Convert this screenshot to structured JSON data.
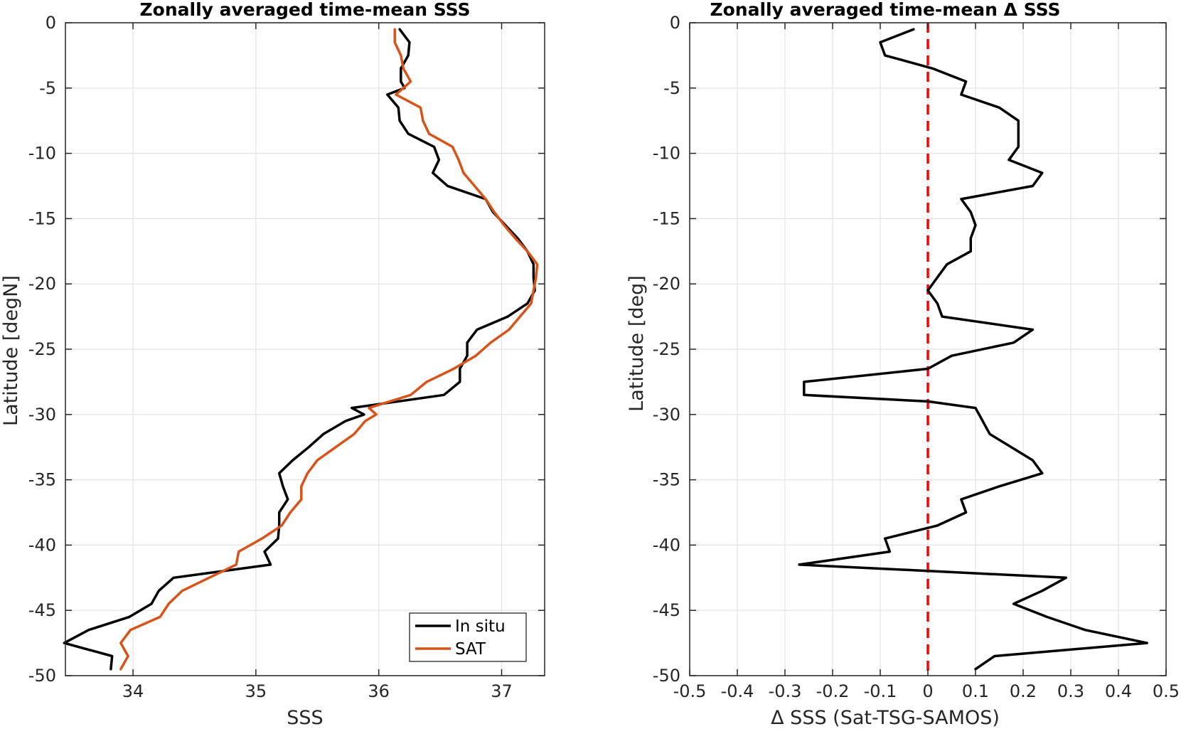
{
  "chart_data": [
    {
      "type": "line",
      "title": "Zonally averaged time-mean SSS",
      "xlabel": "SSS",
      "ylabel": "Latitude [degN]",
      "xlim": [
        33.45,
        37.35
      ],
      "ylim": [
        -50,
        0
      ],
      "xticks": [
        34,
        35,
        36,
        37
      ],
      "yticks": [
        0,
        -5,
        -10,
        -15,
        -20,
        -25,
        -30,
        -35,
        -40,
        -45,
        -50
      ],
      "grid": true,
      "legend": {
        "placement": "bottom-right",
        "entries": [
          "In situ",
          "SAT"
        ]
      },
      "series": [
        {
          "name": "In situ",
          "color": "#000000",
          "points": [
            [
              36.17,
              -0.5
            ],
            [
              36.25,
              -1.5
            ],
            [
              36.24,
              -2.5
            ],
            [
              36.18,
              -3.5
            ],
            [
              36.18,
              -4.5
            ],
            [
              36.21,
              -5.0
            ],
            [
              36.07,
              -5.5
            ],
            [
              36.16,
              -6.5
            ],
            [
              36.17,
              -7.5
            ],
            [
              36.24,
              -8.5
            ],
            [
              36.45,
              -9.5
            ],
            [
              36.49,
              -10.5
            ],
            [
              36.44,
              -11.5
            ],
            [
              36.56,
              -12.5
            ],
            [
              36.87,
              -13.5
            ],
            [
              36.93,
              -14.5
            ],
            [
              37.03,
              -15.5
            ],
            [
              37.13,
              -16.5
            ],
            [
              37.21,
              -17.5
            ],
            [
              37.26,
              -18.5
            ],
            [
              37.26,
              -19.5
            ],
            [
              37.27,
              -20.5
            ],
            [
              37.21,
              -21.5
            ],
            [
              37.05,
              -22.5
            ],
            [
              36.8,
              -23.5
            ],
            [
              36.72,
              -24.5
            ],
            [
              36.72,
              -25.5
            ],
            [
              36.66,
              -26.5
            ],
            [
              36.66,
              -27.5
            ],
            [
              36.53,
              -28.5
            ],
            [
              35.78,
              -29.5
            ],
            [
              35.88,
              -30.0
            ],
            [
              35.73,
              -30.5
            ],
            [
              35.55,
              -31.5
            ],
            [
              35.43,
              -32.5
            ],
            [
              35.3,
              -33.5
            ],
            [
              35.19,
              -34.5
            ],
            [
              35.22,
              -35.5
            ],
            [
              35.26,
              -36.5
            ],
            [
              35.19,
              -37.5
            ],
            [
              35.19,
              -38.5
            ],
            [
              35.18,
              -39.5
            ],
            [
              35.07,
              -40.5
            ],
            [
              35.12,
              -41.5
            ],
            [
              34.33,
              -42.5
            ],
            [
              34.21,
              -43.5
            ],
            [
              34.15,
              -44.5
            ],
            [
              33.97,
              -45.5
            ],
            [
              33.64,
              -46.5
            ],
            [
              33.44,
              -47.5
            ],
            [
              33.83,
              -48.5
            ],
            [
              33.82,
              -49.5
            ]
          ]
        },
        {
          "name": "SAT",
          "color": "#D95319",
          "points": [
            [
              36.13,
              -0.5
            ],
            [
              36.13,
              -1.5
            ],
            [
              36.18,
              -2.5
            ],
            [
              36.2,
              -3.5
            ],
            [
              36.26,
              -4.5
            ],
            [
              36.14,
              -5.5
            ],
            [
              36.34,
              -6.5
            ],
            [
              36.36,
              -7.5
            ],
            [
              36.41,
              -8.5
            ],
            [
              36.6,
              -9.5
            ],
            [
              36.65,
              -10.5
            ],
            [
              36.69,
              -11.5
            ],
            [
              36.78,
              -12.5
            ],
            [
              36.87,
              -13.5
            ],
            [
              36.94,
              -14.5
            ],
            [
              37.02,
              -15.5
            ],
            [
              37.11,
              -16.5
            ],
            [
              37.21,
              -17.5
            ],
            [
              37.29,
              -18.5
            ],
            [
              37.28,
              -19.5
            ],
            [
              37.26,
              -20.5
            ],
            [
              37.24,
              -21.5
            ],
            [
              37.15,
              -22.5
            ],
            [
              37.06,
              -23.5
            ],
            [
              36.91,
              -24.5
            ],
            [
              36.79,
              -25.5
            ],
            [
              36.61,
              -26.5
            ],
            [
              36.39,
              -27.5
            ],
            [
              36.26,
              -28.5
            ],
            [
              35.92,
              -29.5
            ],
            [
              35.98,
              -30.0
            ],
            [
              35.89,
              -30.5
            ],
            [
              35.8,
              -31.5
            ],
            [
              35.65,
              -32.5
            ],
            [
              35.5,
              -33.5
            ],
            [
              35.42,
              -34.5
            ],
            [
              35.37,
              -35.5
            ],
            [
              35.37,
              -36.5
            ],
            [
              35.28,
              -37.5
            ],
            [
              35.21,
              -38.5
            ],
            [
              35.05,
              -39.5
            ],
            [
              34.86,
              -40.5
            ],
            [
              34.84,
              -41.5
            ],
            [
              34.62,
              -42.5
            ],
            [
              34.4,
              -43.5
            ],
            [
              34.29,
              -44.5
            ],
            [
              34.22,
              -45.5
            ],
            [
              33.98,
              -46.5
            ],
            [
              33.9,
              -47.5
            ],
            [
              33.96,
              -48.5
            ],
            [
              33.9,
              -49.5
            ]
          ]
        }
      ]
    },
    {
      "type": "line",
      "title": "Zonally averaged time-mean Δ SSS",
      "xlabel": "Δ SSS (Sat-TSG-SAMOS)",
      "ylabel": "Latitude [deg]",
      "xlim": [
        -0.5,
        0.5
      ],
      "ylim": [
        -50,
        0
      ],
      "xticks": [
        -0.5,
        -0.4,
        -0.3,
        -0.2,
        -0.1,
        0,
        0.1,
        0.2,
        0.3,
        0.4,
        0.5
      ],
      "xtick_labels": [
        "-0.5",
        "-0.4",
        "-0.3",
        "-0.2",
        "-0.1",
        "0",
        "0.1",
        "0.2",
        "0.3",
        "0.4",
        "0.5"
      ],
      "yticks": [
        0,
        -5,
        -10,
        -15,
        -20,
        -25,
        -30,
        -35,
        -40,
        -45,
        -50
      ],
      "grid": true,
      "reference_line": {
        "x": 0,
        "color": "#FF0000",
        "style": "dashed"
      },
      "series": [
        {
          "color": "#000000",
          "points": [
            [
              -0.03,
              -0.5
            ],
            [
              -0.1,
              -1.5
            ],
            [
              -0.09,
              -2.5
            ],
            [
              0.01,
              -3.5
            ],
            [
              0.08,
              -4.5
            ],
            [
              0.07,
              -5.5
            ],
            [
              0.15,
              -6.5
            ],
            [
              0.19,
              -7.5
            ],
            [
              0.19,
              -8.5
            ],
            [
              0.19,
              -9.5
            ],
            [
              0.17,
              -10.5
            ],
            [
              0.24,
              -11.5
            ],
            [
              0.22,
              -12.5
            ],
            [
              0.07,
              -13.5
            ],
            [
              0.09,
              -14.5
            ],
            [
              0.1,
              -15.5
            ],
            [
              0.09,
              -16.5
            ],
            [
              0.09,
              -17.5
            ],
            [
              0.04,
              -18.5
            ],
            [
              0.02,
              -19.5
            ],
            [
              0.0,
              -20.5
            ],
            [
              0.02,
              -21.5
            ],
            [
              0.03,
              -22.5
            ],
            [
              0.22,
              -23.5
            ],
            [
              0.18,
              -24.5
            ],
            [
              0.05,
              -25.5
            ],
            [
              0.0,
              -26.5
            ],
            [
              -0.26,
              -27.5
            ],
            [
              -0.26,
              -28.5
            ],
            [
              0.0,
              -29.0
            ],
            [
              0.1,
              -29.5
            ],
            [
              0.13,
              -31.5
            ],
            [
              0.22,
              -33.5
            ],
            [
              0.24,
              -34.5
            ],
            [
              0.15,
              -35.5
            ],
            [
              0.07,
              -36.5
            ],
            [
              0.08,
              -37.5
            ],
            [
              0.02,
              -38.5
            ],
            [
              -0.09,
              -39.5
            ],
            [
              -0.08,
              -40.5
            ],
            [
              -0.27,
              -41.5
            ],
            [
              0.29,
              -42.5
            ],
            [
              0.24,
              -43.5
            ],
            [
              0.18,
              -44.5
            ],
            [
              0.25,
              -45.5
            ],
            [
              0.33,
              -46.5
            ],
            [
              0.46,
              -47.5
            ],
            [
              0.14,
              -48.5
            ],
            [
              0.1,
              -49.5
            ]
          ]
        }
      ]
    }
  ]
}
